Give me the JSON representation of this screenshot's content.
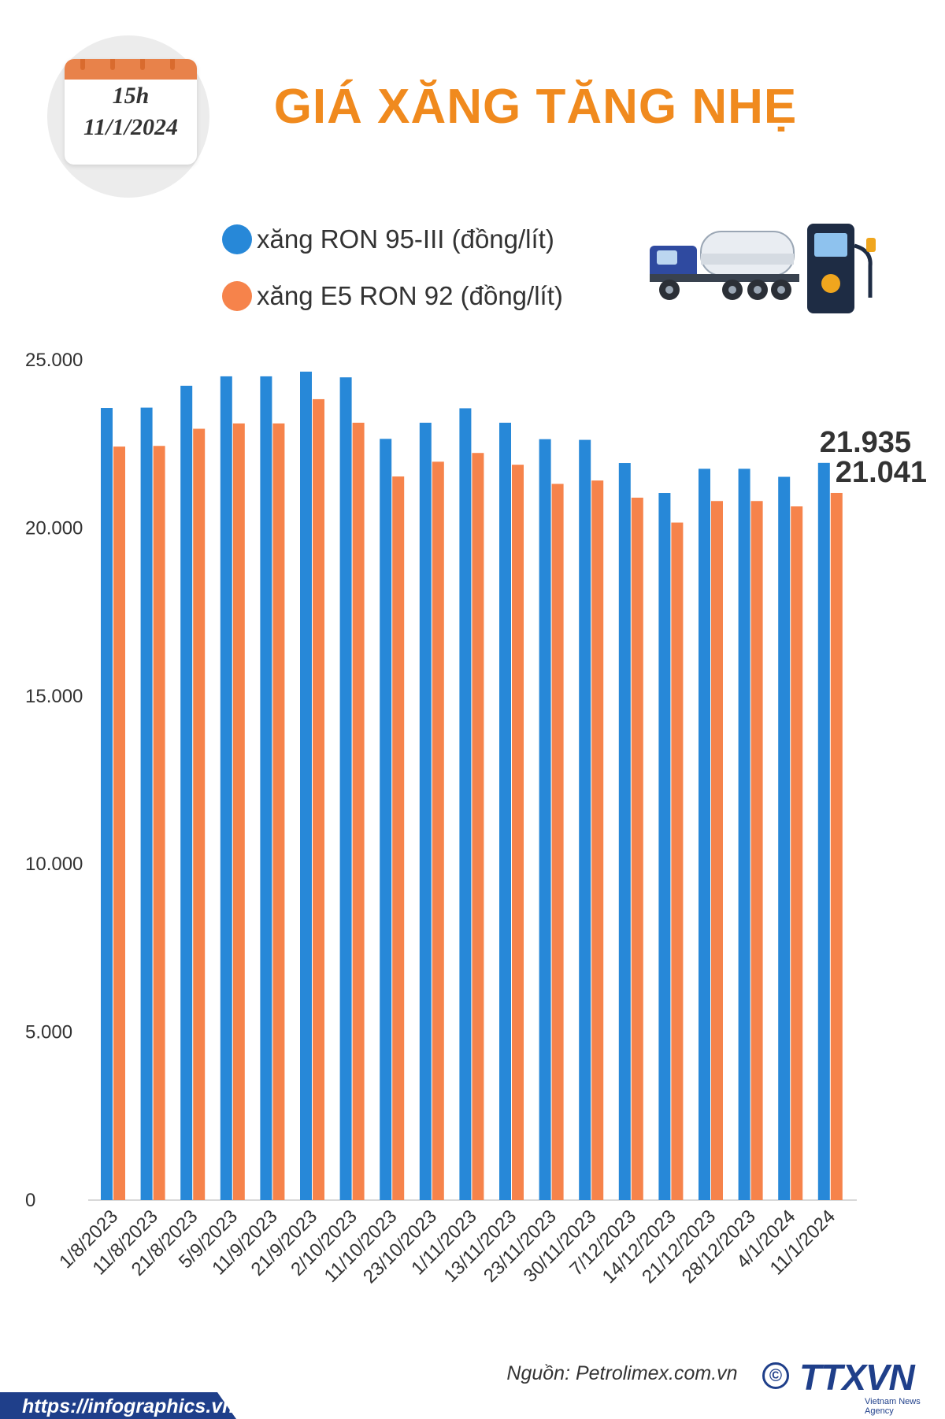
{
  "calendar": {
    "time": "15h",
    "date": "11/1/2024"
  },
  "title": "GIÁ XĂNG TĂNG NHẸ",
  "legend": [
    {
      "label": "xăng RON 95-III (đồng/lít)",
      "color": "#2788d8"
    },
    {
      "label": "xăng E5 RON 92 (đồng/lít)",
      "color": "#f6834b"
    }
  ],
  "chart_data": {
    "type": "bar",
    "categories": [
      "1/8/2023",
      "11/8/2023",
      "21/8/2023",
      "5/9/2023",
      "11/9/2023",
      "21/9/2023",
      "2/10/2023",
      "11/10/2023",
      "23/10/2023",
      "1/11/2023",
      "13/11/2023",
      "23/11/2023",
      "30/11/2023",
      "7/12/2023",
      "14/12/2023",
      "21/12/2023",
      "28/12/2023",
      "4/1/2024",
      "11/1/2024"
    ],
    "series": [
      {
        "name": "xăng RON 95-III (đồng/lít)",
        "color": "#2788d8",
        "values": [
          23570,
          23580,
          24230,
          24510,
          24510,
          24650,
          24480,
          22650,
          23130,
          23560,
          23130,
          22640,
          22620,
          21930,
          21040,
          21760,
          21760,
          21520,
          21935
        ]
      },
      {
        "name": "xăng E5 RON 92 (đồng/lít)",
        "color": "#f6834b",
        "values": [
          22420,
          22440,
          22950,
          23110,
          23110,
          23830,
          23130,
          21530,
          21970,
          22230,
          21880,
          21310,
          21410,
          20900,
          20160,
          20800,
          20800,
          20640,
          21041
        ]
      }
    ],
    "yticks": [
      "0",
      "5.000",
      "10.000",
      "15.000",
      "20.000",
      "25.000"
    ],
    "ylim": [
      0,
      25000
    ],
    "annotations": [
      "21.935",
      "21.041"
    ],
    "grid": false
  },
  "footer": {
    "source": "Nguồn: Petrolimex.com.vn",
    "url": "https://infographics.vn",
    "copyright": "©",
    "logo": "TTXVN",
    "logo_sub": "Vietnam News Agency"
  }
}
